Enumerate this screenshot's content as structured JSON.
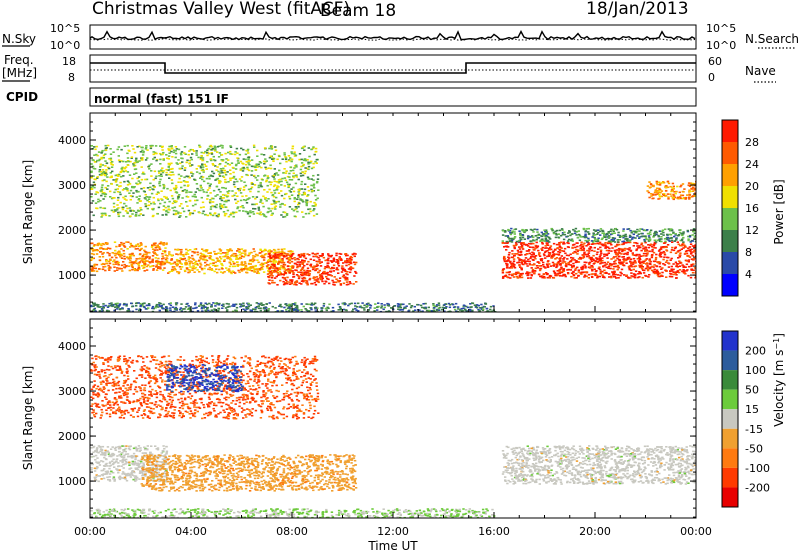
{
  "header": {
    "station": "Christmas Valley West (fitACF)",
    "beam": "Beam 18",
    "date": "18/Jan/2013"
  },
  "noise_panel": {
    "left_label": "N.Sky",
    "right_label": "N.Search",
    "left_ticks": [
      "10^5",
      "10^0"
    ],
    "right_ticks": [
      "10^5",
      "10^0"
    ]
  },
  "freq_panel": {
    "left_label_line1": "Freq.",
    "left_label_line2": "[MHz]",
    "right_label": "Nave",
    "left_ticks": [
      "18",
      "8"
    ],
    "right_ticks": [
      "60",
      "0"
    ]
  },
  "cpid_panel": {
    "label": "CPID",
    "mode_text": "normal (fast) 151 IF"
  },
  "colors": {
    "power_scale": [
      "#0000ff",
      "#2a4aa8",
      "#3c7f4a",
      "#6cc04a",
      "#f0e000",
      "#ffa000",
      "#ff5a00",
      "#ff1a00"
    ],
    "velocity_scale": [
      "#2233cc",
      "#2c5c9c",
      "#3a8a3a",
      "#6ccb3a",
      "#c8c8c0",
      "#f0a030",
      "#ff7a10",
      "#ff3a00",
      "#e80000"
    ]
  },
  "chart_data": [
    {
      "type": "heatmap",
      "name": "power",
      "ylabel": "Slant Range [km]",
      "xlabel": "",
      "x_ticks": [
        "00:00",
        "04:00",
        "08:00",
        "12:00",
        "16:00",
        "20:00",
        "00:00"
      ],
      "y_ticks": [
        1000,
        2000,
        3000,
        4000
      ],
      "xlim_hours": [
        0,
        24
      ],
      "ylim_km": [
        180,
        4600
      ],
      "colorbar": {
        "label": "Power [dB]",
        "ticks": [
          "28",
          "24",
          "20",
          "16",
          "12",
          "8",
          "4"
        ],
        "range": [
          0,
          30
        ]
      },
      "regions": [
        {
          "t0": 0.0,
          "t1": 3.0,
          "r0": 1100,
          "r1": 1750,
          "value": 22
        },
        {
          "t0": 3.0,
          "t1": 8.0,
          "r0": 1050,
          "r1": 1600,
          "value": 20
        },
        {
          "t0": 7.0,
          "t1": 10.5,
          "r0": 800,
          "r1": 1500,
          "value": 27
        },
        {
          "t0": 16.3,
          "t1": 24.0,
          "r0": 950,
          "r1": 1750,
          "value": 28
        },
        {
          "t0": 16.3,
          "t1": 24.0,
          "r0": 1750,
          "r1": 2050,
          "value": 10
        },
        {
          "t0": 0.0,
          "t1": 9.0,
          "r0": 2300,
          "r1": 3900,
          "value": 14
        },
        {
          "t0": 22.0,
          "t1": 24.0,
          "r0": 2700,
          "r1": 3100,
          "value": 22
        },
        {
          "t0": 0.0,
          "t1": 16.0,
          "r0": 200,
          "r1": 400,
          "value": 8
        }
      ]
    },
    {
      "type": "heatmap",
      "name": "velocity",
      "ylabel": "Slant Range [km]",
      "xlabel": "Time UT",
      "x_ticks": [
        "00:00",
        "04:00",
        "08:00",
        "12:00",
        "16:00",
        "20:00",
        "00:00"
      ],
      "y_ticks": [
        1000,
        2000,
        3000,
        4000
      ],
      "xlim_hours": [
        0,
        24
      ],
      "ylim_km": [
        180,
        4600
      ],
      "colorbar": {
        "label": "Velocity [m s^-1]",
        "ticks": [
          "200",
          "100",
          "50",
          "15",
          "-15",
          "-50",
          "-100",
          "-200"
        ],
        "range": [
          -250,
          250
        ]
      },
      "regions": [
        {
          "t0": 0.0,
          "t1": 3.0,
          "r0": 1000,
          "r1": 1800,
          "value": 0
        },
        {
          "t0": 2.0,
          "t1": 10.5,
          "r0": 800,
          "r1": 1600,
          "value": -60
        },
        {
          "t0": 16.3,
          "t1": 24.0,
          "r0": 950,
          "r1": 1800,
          "value": 0
        },
        {
          "t0": 0.0,
          "t1": 9.0,
          "r0": 2400,
          "r1": 3800,
          "value": -150
        },
        {
          "t0": 3.0,
          "t1": 6.0,
          "r0": 3000,
          "r1": 3600,
          "value": 200
        },
        {
          "t0": 0.0,
          "t1": 16.0,
          "r0": 200,
          "r1": 400,
          "value": 30
        }
      ]
    }
  ]
}
